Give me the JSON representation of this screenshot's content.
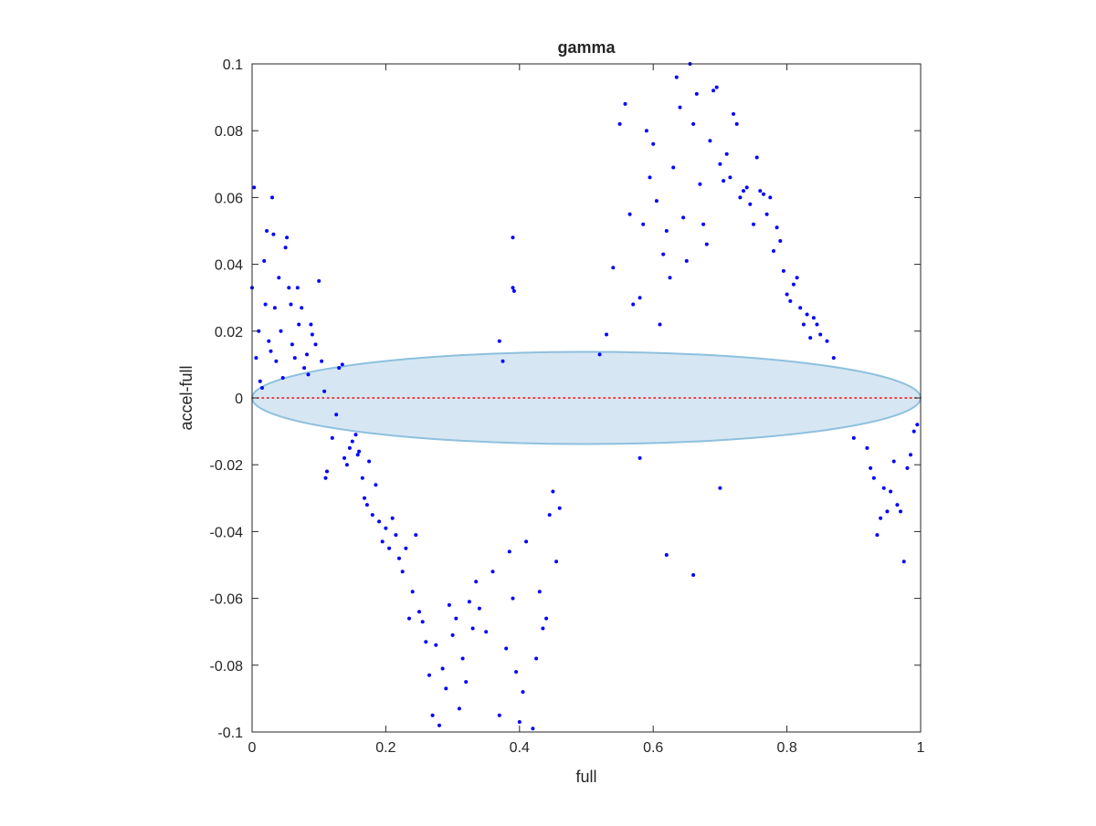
{
  "chart_data": {
    "type": "scatter",
    "title": "gamma",
    "xlabel": "full",
    "ylabel": "accel-full",
    "xlim": [
      0,
      1
    ],
    "ylim": [
      -0.1,
      0.1
    ],
    "xticks": [
      0,
      0.2,
      0.4,
      0.6,
      0.8,
      1
    ],
    "xtick_labels": [
      "0",
      "0.2",
      "0.4",
      "0.6",
      "0.8",
      "1"
    ],
    "yticks": [
      -0.1,
      -0.08,
      -0.06,
      -0.04,
      -0.02,
      0,
      0.02,
      0.04,
      0.06,
      0.08,
      0.1
    ],
    "ytick_labels": [
      "-0.1",
      "-0.08",
      "-0.06",
      "-0.04",
      "-0.02",
      "0",
      "0.02",
      "0.04",
      "0.06",
      "0.08",
      "0.1"
    ],
    "grid": false,
    "colors": {
      "points": "#0000ff",
      "zero_line": "#ff0000",
      "ellipse_fill": "#d6e7f3",
      "ellipse_edge": "#8ec0de",
      "axes": "#262626"
    },
    "zero_line": {
      "y": 0,
      "style": "dotted"
    },
    "ellipse": {
      "center": [
        0.5,
        0
      ],
      "semi_axis_x": 0.5,
      "semi_axis_y": 0.0138
    },
    "series": [
      {
        "points": [
          [
            0.0,
            0.033
          ],
          [
            0.003,
            0.063
          ],
          [
            0.006,
            0.012
          ],
          [
            0.01,
            0.02
          ],
          [
            0.012,
            0.005
          ],
          [
            0.015,
            0.003
          ],
          [
            0.018,
            0.041
          ],
          [
            0.02,
            0.028
          ],
          [
            0.022,
            0.05
          ],
          [
            0.025,
            0.017
          ],
          [
            0.028,
            0.014
          ],
          [
            0.03,
            0.06
          ],
          [
            0.032,
            0.049
          ],
          [
            0.034,
            0.027
          ],
          [
            0.036,
            0.011
          ],
          [
            0.04,
            0.036
          ],
          [
            0.043,
            0.02
          ],
          [
            0.046,
            0.006
          ],
          [
            0.05,
            0.045
          ],
          [
            0.052,
            0.048
          ],
          [
            0.055,
            0.033
          ],
          [
            0.058,
            0.028
          ],
          [
            0.06,
            0.016
          ],
          [
            0.064,
            0.012
          ],
          [
            0.068,
            0.033
          ],
          [
            0.07,
            0.022
          ],
          [
            0.074,
            0.027
          ],
          [
            0.078,
            0.009
          ],
          [
            0.082,
            0.013
          ],
          [
            0.084,
            0.007
          ],
          [
            0.088,
            0.022
          ],
          [
            0.09,
            0.019
          ],
          [
            0.095,
            0.016
          ],
          [
            0.1,
            0.035
          ],
          [
            0.104,
            0.011
          ],
          [
            0.108,
            0.002
          ],
          [
            0.11,
            -0.024
          ],
          [
            0.112,
            -0.022
          ],
          [
            0.12,
            -0.012
          ],
          [
            0.126,
            -0.005
          ],
          [
            0.13,
            0.009
          ],
          [
            0.135,
            0.01
          ],
          [
            0.138,
            -0.018
          ],
          [
            0.142,
            -0.02
          ],
          [
            0.146,
            -0.015
          ],
          [
            0.15,
            -0.013
          ],
          [
            0.155,
            -0.011
          ],
          [
            0.158,
            -0.017
          ],
          [
            0.16,
            -0.016
          ],
          [
            0.165,
            -0.024
          ],
          [
            0.168,
            -0.03
          ],
          [
            0.172,
            -0.032
          ],
          [
            0.175,
            -0.019
          ],
          [
            0.18,
            -0.035
          ],
          [
            0.185,
            -0.026
          ],
          [
            0.19,
            -0.037
          ],
          [
            0.195,
            -0.043
          ],
          [
            0.2,
            -0.039
          ],
          [
            0.205,
            -0.045
          ],
          [
            0.21,
            -0.036
          ],
          [
            0.215,
            -0.041
          ],
          [
            0.22,
            -0.048
          ],
          [
            0.225,
            -0.052
          ],
          [
            0.23,
            -0.045
          ],
          [
            0.235,
            -0.066
          ],
          [
            0.24,
            -0.058
          ],
          [
            0.245,
            -0.041
          ],
          [
            0.25,
            -0.064
          ],
          [
            0.255,
            -0.067
          ],
          [
            0.26,
            -0.073
          ],
          [
            0.265,
            -0.083
          ],
          [
            0.27,
            -0.095
          ],
          [
            0.275,
            -0.074
          ],
          [
            0.28,
            -0.098
          ],
          [
            0.285,
            -0.081
          ],
          [
            0.29,
            -0.087
          ],
          [
            0.295,
            -0.062
          ],
          [
            0.3,
            -0.071
          ],
          [
            0.305,
            -0.066
          ],
          [
            0.31,
            -0.093
          ],
          [
            0.315,
            -0.078
          ],
          [
            0.32,
            -0.085
          ],
          [
            0.325,
            -0.061
          ],
          [
            0.33,
            -0.069
          ],
          [
            0.335,
            -0.055
          ],
          [
            0.34,
            -0.063
          ],
          [
            0.35,
            -0.07
          ],
          [
            0.36,
            -0.052
          ],
          [
            0.37,
            -0.095
          ],
          [
            0.38,
            -0.075
          ],
          [
            0.385,
            -0.046
          ],
          [
            0.39,
            -0.06
          ],
          [
            0.395,
            -0.082
          ],
          [
            0.4,
            -0.097
          ],
          [
            0.405,
            -0.088
          ],
          [
            0.41,
            -0.043
          ],
          [
            0.42,
            -0.099
          ],
          [
            0.425,
            -0.078
          ],
          [
            0.43,
            -0.058
          ],
          [
            0.435,
            -0.069
          ],
          [
            0.44,
            -0.066
          ],
          [
            0.445,
            -0.035
          ],
          [
            0.45,
            -0.028
          ],
          [
            0.455,
            -0.049
          ],
          [
            0.46,
            -0.033
          ],
          [
            0.39,
            0.048
          ],
          [
            0.39,
            0.033
          ],
          [
            0.392,
            0.032
          ],
          [
            0.37,
            0.017
          ],
          [
            0.375,
            0.011
          ],
          [
            0.52,
            0.013
          ],
          [
            0.53,
            0.019
          ],
          [
            0.54,
            0.039
          ],
          [
            0.55,
            0.082
          ],
          [
            0.558,
            0.088
          ],
          [
            0.565,
            0.055
          ],
          [
            0.57,
            0.028
          ],
          [
            0.58,
            0.03
          ],
          [
            0.585,
            0.052
          ],
          [
            0.59,
            0.08
          ],
          [
            0.595,
            0.066
          ],
          [
            0.6,
            0.076
          ],
          [
            0.605,
            0.059
          ],
          [
            0.61,
            0.022
          ],
          [
            0.615,
            0.043
          ],
          [
            0.62,
            0.05
          ],
          [
            0.625,
            0.036
          ],
          [
            0.63,
            0.069
          ],
          [
            0.635,
            0.096
          ],
          [
            0.64,
            0.087
          ],
          [
            0.645,
            0.054
          ],
          [
            0.65,
            0.041
          ],
          [
            0.655,
            0.1
          ],
          [
            0.66,
            0.082
          ],
          [
            0.665,
            0.091
          ],
          [
            0.67,
            0.064
          ],
          [
            0.675,
            0.052
          ],
          [
            0.68,
            0.046
          ],
          [
            0.685,
            0.077
          ],
          [
            0.69,
            0.092
          ],
          [
            0.695,
            0.093
          ],
          [
            0.7,
            0.07
          ],
          [
            0.705,
            0.065
          ],
          [
            0.71,
            0.073
          ],
          [
            0.715,
            0.066
          ],
          [
            0.72,
            0.085
          ],
          [
            0.725,
            0.082
          ],
          [
            0.73,
            0.06
          ],
          [
            0.735,
            0.062
          ],
          [
            0.74,
            0.063
          ],
          [
            0.745,
            0.058
          ],
          [
            0.75,
            0.052
          ],
          [
            0.755,
            0.072
          ],
          [
            0.76,
            0.062
          ],
          [
            0.765,
            0.061
          ],
          [
            0.77,
            0.055
          ],
          [
            0.775,
            0.06
          ],
          [
            0.78,
            0.044
          ],
          [
            0.785,
            0.051
          ],
          [
            0.79,
            0.047
          ],
          [
            0.795,
            0.038
          ],
          [
            0.8,
            0.031
          ],
          [
            0.805,
            0.029
          ],
          [
            0.81,
            0.034
          ],
          [
            0.815,
            0.036
          ],
          [
            0.82,
            0.027
          ],
          [
            0.825,
            0.022
          ],
          [
            0.83,
            0.025
          ],
          [
            0.835,
            0.018
          ],
          [
            0.84,
            0.024
          ],
          [
            0.845,
            0.022
          ],
          [
            0.85,
            0.019
          ],
          [
            0.86,
            0.017
          ],
          [
            0.87,
            0.012
          ],
          [
            0.58,
            -0.018
          ],
          [
            0.62,
            -0.047
          ],
          [
            0.66,
            -0.053
          ],
          [
            0.7,
            -0.027
          ],
          [
            0.9,
            -0.012
          ],
          [
            0.92,
            -0.015
          ],
          [
            0.925,
            -0.021
          ],
          [
            0.93,
            -0.024
          ],
          [
            0.935,
            -0.041
          ],
          [
            0.94,
            -0.036
          ],
          [
            0.945,
            -0.027
          ],
          [
            0.95,
            -0.034
          ],
          [
            0.955,
            -0.028
          ],
          [
            0.96,
            -0.019
          ],
          [
            0.965,
            -0.032
          ],
          [
            0.97,
            -0.034
          ],
          [
            0.975,
            -0.049
          ],
          [
            0.98,
            -0.021
          ],
          [
            0.985,
            -0.017
          ],
          [
            0.99,
            -0.01
          ],
          [
            0.995,
            -0.008
          ]
        ]
      }
    ]
  }
}
